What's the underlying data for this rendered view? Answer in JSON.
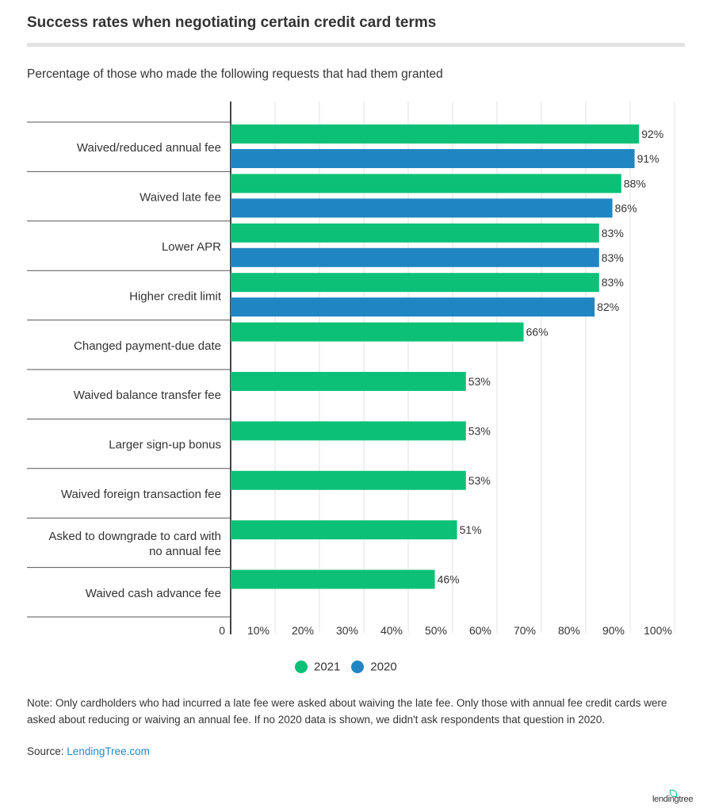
{
  "title": "Success rates when negotiating certain credit card terms",
  "subtitle": "Percentage of those who made the following requests that had them granted",
  "chart_data": {
    "type": "bar",
    "orientation": "horizontal",
    "categories": [
      "Waived/reduced annual fee",
      "Waived late fee",
      "Lower APR",
      "Higher credit limit",
      "Changed payment-due date",
      "Waived balance transfer fee",
      "Larger sign-up bonus",
      "Waived foreign transaction fee",
      "Asked to downgrade to card with no annual fee",
      "Waived cash advance fee"
    ],
    "series": [
      {
        "name": "2021",
        "color": "#0cc177",
        "values": [
          92,
          88,
          83,
          83,
          66,
          53,
          53,
          53,
          51,
          46
        ]
      },
      {
        "name": "2020",
        "color": "#1f86c2",
        "values": [
          91,
          86,
          83,
          82,
          null,
          null,
          null,
          null,
          null,
          null
        ]
      }
    ],
    "xlim": [
      0,
      100
    ],
    "xticks": [
      "0",
      "10%",
      "20%",
      "30%",
      "40%",
      "50%",
      "60%",
      "70%",
      "80%",
      "90%",
      "100%"
    ],
    "grid": true,
    "legend": "bottom"
  },
  "note": "Note: Only cardholders who had incurred a late fee were asked about waiving the late fee. Only those with annual fee credit cards were asked about reducing or waiving an annual fee. If no 2020 data is shown, we didn't ask respondents that question in 2020.",
  "source_label": "Source:",
  "source_link": "LendingTree.com",
  "logo": "lendingtree"
}
